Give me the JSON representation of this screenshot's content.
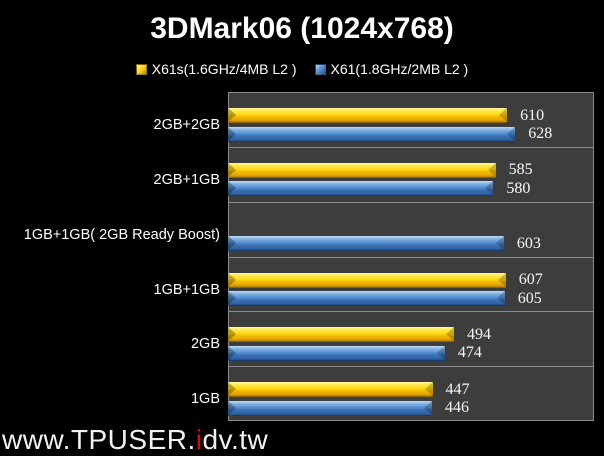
{
  "title": "3DMark06 (1024x768)",
  "legend": [
    {
      "label": "X61s(1.6GHz/4MB L2 )",
      "color": "#FFD614"
    },
    {
      "label": "X61(1.8GHz/2MB L2 )",
      "color": "#4E89CE"
    }
  ],
  "chart_data": {
    "type": "bar",
    "orientation": "horizontal",
    "title": "3DMark06 (1024x768)",
    "categories": [
      "2GB+2GB",
      "2GB+1GB",
      "1GB+1GB( 2GB Ready Boost)",
      "1GB+1GB",
      "2GB",
      "1GB"
    ],
    "series": [
      {
        "name": "X61s(1.6GHz/4MB L2 )",
        "color": "#FFD614",
        "values": [
          610,
          585,
          null,
          607,
          494,
          447
        ]
      },
      {
        "name": "X61(1.8GHz/2MB L2 )",
        "color": "#4E89CE",
        "values": [
          628,
          580,
          603,
          605,
          474,
          446
        ]
      }
    ],
    "xlim": [
      0,
      800
    ],
    "grid": false,
    "legend_position": "top",
    "value_labels": true,
    "plot_background": "#3D3D3D",
    "page_background": "#000000",
    "gridline_color": "#8A8A8A"
  },
  "watermark": {
    "part1": "www.TPUSER.",
    "accent": "i",
    "part2": "dv.tw",
    "accent_color": "#ee0000",
    "text_color": "#f2f2f2"
  }
}
